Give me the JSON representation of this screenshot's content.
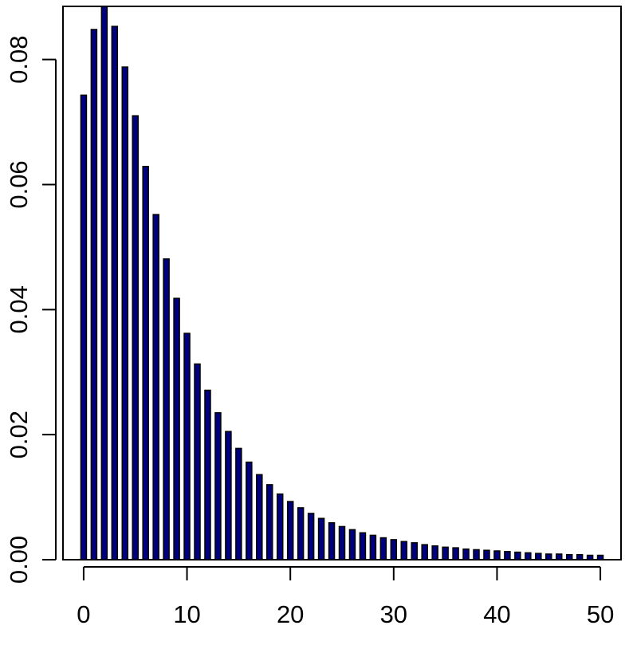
{
  "chart_data": {
    "type": "bar",
    "title": "",
    "xlabel": "",
    "ylabel": "",
    "x": [
      0,
      1,
      2,
      3,
      4,
      5,
      6,
      7,
      8,
      9,
      10,
      11,
      12,
      13,
      14,
      15,
      16,
      17,
      18,
      19,
      20,
      21,
      22,
      23,
      24,
      25,
      26,
      27,
      28,
      29,
      30,
      31,
      32,
      33,
      34,
      35,
      36,
      37,
      38,
      39,
      40,
      41,
      42,
      43,
      44,
      45,
      46,
      47,
      48,
      49,
      50
    ],
    "values": [
      0.0743,
      0.0848,
      0.0885,
      0.0853,
      0.0788,
      0.071,
      0.0629,
      0.0552,
      0.0481,
      0.0418,
      0.0362,
      0.0313,
      0.0271,
      0.0235,
      0.0205,
      0.0178,
      0.0156,
      0.0136,
      0.012,
      0.0105,
      0.0093,
      0.0083,
      0.0074,
      0.0066,
      0.0059,
      0.0053,
      0.0048,
      0.0043,
      0.0039,
      0.0035,
      0.0032,
      0.0029,
      0.0027,
      0.0024,
      0.0022,
      0.002,
      0.0019,
      0.0017,
      0.0016,
      0.0015,
      0.0014,
      0.0013,
      0.0012,
      0.0011,
      0.001,
      0.0009,
      0.0009,
      0.0008,
      0.0008,
      0.0007,
      0.0007
    ],
    "xlim": [
      -2,
      52
    ],
    "ylim": [
      0,
      0.0885
    ],
    "x_ticks": [
      0,
      10,
      20,
      30,
      40,
      50
    ],
    "x_tick_labels": [
      "0",
      "10",
      "20",
      "30",
      "40",
      "50"
    ],
    "y_ticks": [
      0.0,
      0.02,
      0.04,
      0.06,
      0.08
    ],
    "y_tick_labels": [
      "0.00",
      "0.02",
      "0.04",
      "0.06",
      "0.08"
    ],
    "grid": false,
    "legend": "none",
    "colors": {
      "bar_fill": "#00007f",
      "bar_stroke": "#000000",
      "axis": "#000000"
    }
  }
}
